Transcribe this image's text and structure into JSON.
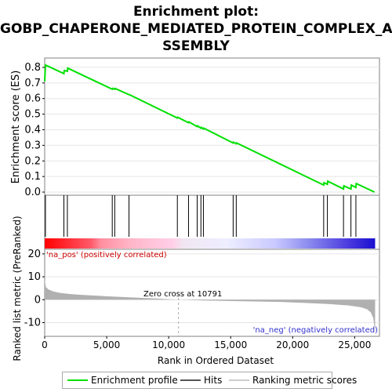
{
  "title_lines": [
    "Enrichment plot:",
    "GOBP_CHAPERONE_MEDIATED_PROTEIN_COMPLEX_A",
    "SSEMBLY"
  ],
  "legend": [
    {
      "label": "Enrichment profile",
      "color": "#00e000"
    },
    {
      "label": "Hits",
      "color": "#555555"
    },
    {
      "label": "Ranking metric scores",
      "color": "#cccccc"
    }
  ],
  "chart_data": [
    {
      "type": "line",
      "name": "enrichment-profile",
      "ylabel": "Enrichment score (ES)",
      "xlim": [
        0,
        27000
      ],
      "ylim": [
        -0.02,
        0.86
      ],
      "yticks": [
        0.0,
        0.1,
        0.2,
        0.3,
        0.4,
        0.5,
        0.6,
        0.7,
        0.8
      ],
      "ytick_labels": [
        "0.0",
        "0.1",
        "0.2",
        "0.3",
        "0.4",
        "0.5",
        "0.6",
        "0.7",
        "0.8"
      ],
      "color": "#00e000",
      "x": [
        0,
        60,
        1550,
        1580,
        1830,
        1860,
        5450,
        5480,
        5650,
        5680,
        6800,
        6830,
        10700,
        10730,
        11600,
        11630,
        12300,
        12330,
        12600,
        12630,
        12800,
        12830,
        15200,
        15230,
        15450,
        15480,
        22500,
        22530,
        22800,
        22830,
        24100,
        24130,
        24700,
        24730,
        25100,
        25130,
        26600
      ],
      "y": [
        0.71,
        0.815,
        0.76,
        0.78,
        0.775,
        0.795,
        0.66,
        0.665,
        0.66,
        0.665,
        0.625,
        0.625,
        0.475,
        0.48,
        0.445,
        0.45,
        0.42,
        0.425,
        0.41,
        0.415,
        0.405,
        0.41,
        0.315,
        0.32,
        0.31,
        0.315,
        0.045,
        0.06,
        0.05,
        0.07,
        0.02,
        0.04,
        0.02,
        0.045,
        0.03,
        0.055,
        0.0
      ]
    },
    {
      "type": "hits",
      "name": "hits",
      "hit_positions": [
        60,
        1550,
        1830,
        5450,
        5650,
        6800,
        10700,
        11600,
        12300,
        12600,
        12800,
        15200,
        15450,
        22500,
        22800,
        24100,
        24700,
        25100
      ]
    },
    {
      "type": "area",
      "name": "ranking-metric",
      "xlabel": "Rank in Ordered Dataset",
      "ylabel": "Ranked list metric (PreRanked)",
      "xlim": [
        0,
        27000
      ],
      "ylim": [
        -16,
        22
      ],
      "yticks": [
        -10,
        0,
        10,
        20
      ],
      "ytick_labels": [
        "-10",
        "0",
        "10",
        "20"
      ],
      "xticks": [
        0,
        5000,
        10000,
        15000,
        20000,
        25000
      ],
      "xtick_labels": [
        "0",
        "5,000",
        "10,000",
        "15,000",
        "20,000",
        "25,000"
      ],
      "x": [
        0,
        30,
        100,
        300,
        700,
        1200,
        2000,
        3000,
        5000,
        7000,
        9000,
        10791,
        13000,
        16000,
        19000,
        21000,
        23000,
        24500,
        25500,
        26000,
        26300,
        26500,
        26600,
        26650
      ],
      "y": [
        9.5,
        7.5,
        5.5,
        4.5,
        3.6,
        3.0,
        2.5,
        2.1,
        1.5,
        1.0,
        0.5,
        0.0,
        -0.4,
        -0.7,
        -1.0,
        -1.4,
        -1.9,
        -2.5,
        -3.3,
        -4.2,
        -5.5,
        -8.0,
        -12.0,
        -15.0
      ],
      "zero_cross_x": 10791,
      "annotations": {
        "zero_cross": "Zero cross at 10791",
        "pos": "'na_pos' (positively correlated)",
        "neg": "'na_neg' (negatively correlated)"
      }
    }
  ]
}
